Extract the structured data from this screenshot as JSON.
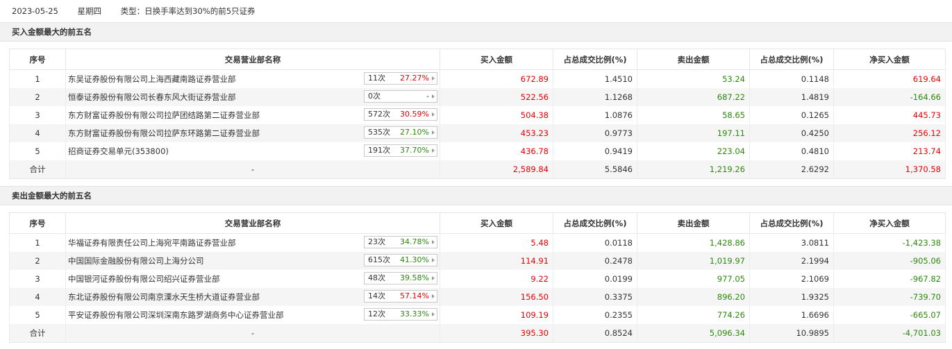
{
  "header": {
    "date": "2023-05-25",
    "weekday": "星期四",
    "type_text": "类型：日换手率达到30%的前5只证券"
  },
  "columns": [
    "序号",
    "交易营业部名称",
    "买入金额",
    "占总成交比例(%)",
    "卖出金额",
    "占总成交比例(%)",
    "净买入金额"
  ],
  "colors": {
    "up": "#e60000",
    "down": "#2a8a0a",
    "accent_bg": "#f5f5f5"
  },
  "buy_section": {
    "title": "买入金额最大的前五名",
    "rows": [
      {
        "seq": "1",
        "name": "东吴证券股份有限公司上海西藏南路证券营业部",
        "count": "11次",
        "pct": "27.27%",
        "pct_dir": "up",
        "buy": "672.89",
        "buy_ratio": "1.4510",
        "sell": "53.24",
        "sell_ratio": "0.1148",
        "net": "619.64",
        "net_dir": "up"
      },
      {
        "seq": "2",
        "name": "恒泰证券股份有限公司长春东风大街证券营业部",
        "count": "0次",
        "pct": "-",
        "pct_dir": "none",
        "buy": "522.56",
        "buy_ratio": "1.1268",
        "sell": "687.22",
        "sell_ratio": "1.4819",
        "net": "-164.66",
        "net_dir": "down"
      },
      {
        "seq": "3",
        "name": "东方财富证券股份有限公司拉萨团结路第二证券营业部",
        "count": "572次",
        "pct": "30.59%",
        "pct_dir": "up",
        "buy": "504.38",
        "buy_ratio": "1.0876",
        "sell": "58.65",
        "sell_ratio": "0.1265",
        "net": "445.73",
        "net_dir": "up"
      },
      {
        "seq": "4",
        "name": "东方财富证券股份有限公司拉萨东环路第二证券营业部",
        "count": "535次",
        "pct": "27.10%",
        "pct_dir": "down",
        "buy": "453.23",
        "buy_ratio": "0.9773",
        "sell": "197.11",
        "sell_ratio": "0.4250",
        "net": "256.12",
        "net_dir": "up"
      },
      {
        "seq": "5",
        "name": "招商证券交易单元(353800)",
        "count": "191次",
        "pct": "37.70%",
        "pct_dir": "down",
        "buy": "436.78",
        "buy_ratio": "0.9419",
        "sell": "223.04",
        "sell_ratio": "0.4810",
        "net": "213.74",
        "net_dir": "up"
      }
    ],
    "total": {
      "label": "合计",
      "name": "-",
      "buy": "2,589.84",
      "buy_ratio": "5.5846",
      "sell": "1,219.26",
      "sell_ratio": "2.6292",
      "net": "1,370.58",
      "net_dir": "up"
    }
  },
  "sell_section": {
    "title": "卖出金额最大的前五名",
    "rows": [
      {
        "seq": "1",
        "name": "华福证券有限责任公司上海宛平南路证券营业部",
        "count": "23次",
        "pct": "34.78%",
        "pct_dir": "down",
        "buy": "5.48",
        "buy_ratio": "0.0118",
        "sell": "1,428.86",
        "sell_ratio": "3.0811",
        "net": "-1,423.38",
        "net_dir": "down"
      },
      {
        "seq": "2",
        "name": "中国国际金融股份有限公司上海分公司",
        "count": "615次",
        "pct": "41.30%",
        "pct_dir": "down",
        "buy": "114.91",
        "buy_ratio": "0.2478",
        "sell": "1,019.97",
        "sell_ratio": "2.1994",
        "net": "-905.06",
        "net_dir": "down"
      },
      {
        "seq": "3",
        "name": "中国银河证券股份有限公司绍兴证券营业部",
        "count": "48次",
        "pct": "39.58%",
        "pct_dir": "down",
        "buy": "9.22",
        "buy_ratio": "0.0199",
        "sell": "977.05",
        "sell_ratio": "2.1069",
        "net": "-967.82",
        "net_dir": "down"
      },
      {
        "seq": "4",
        "name": "东北证券股份有限公司南京溧水天生桥大道证券营业部",
        "count": "14次",
        "pct": "57.14%",
        "pct_dir": "up",
        "buy": "156.50",
        "buy_ratio": "0.3375",
        "sell": "896.20",
        "sell_ratio": "1.9325",
        "net": "-739.70",
        "net_dir": "down"
      },
      {
        "seq": "5",
        "name": "平安证券股份有限公司深圳深南东路罗湖商务中心证券营业部",
        "count": "12次",
        "pct": "33.33%",
        "pct_dir": "down",
        "buy": "109.19",
        "buy_ratio": "0.2355",
        "sell": "774.26",
        "sell_ratio": "1.6696",
        "net": "-665.07",
        "net_dir": "down"
      }
    ],
    "total": {
      "label": "合计",
      "name": "-",
      "buy": "395.30",
      "buy_ratio": "0.8524",
      "sell": "5,096.34",
      "sell_ratio": "10.9895",
      "net": "-4,701.03",
      "net_dir": "down"
    }
  }
}
